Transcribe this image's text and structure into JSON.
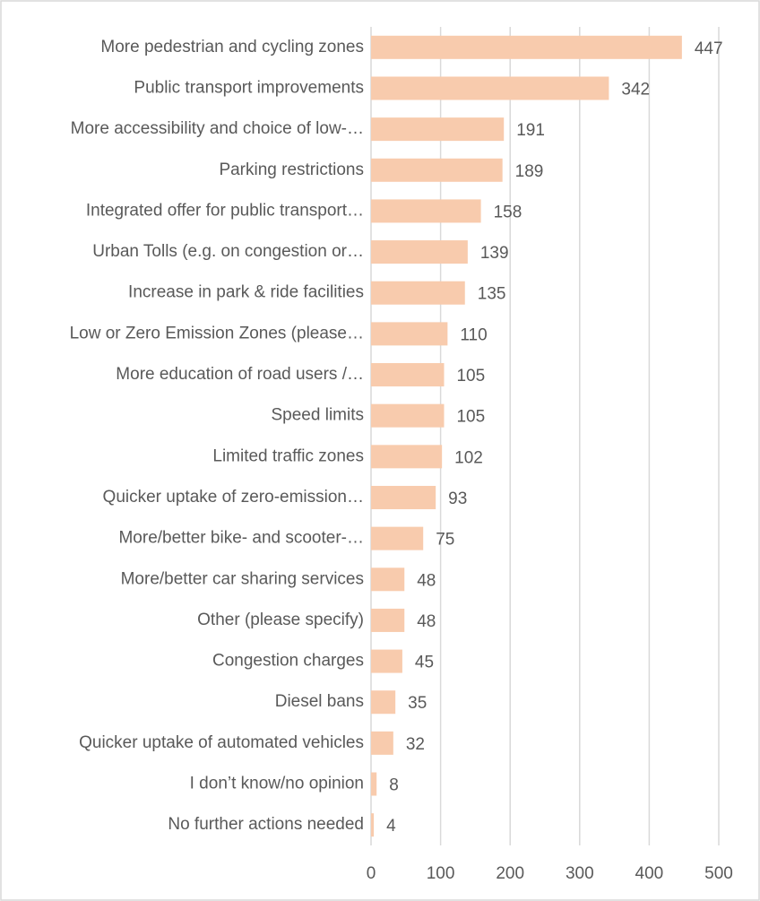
{
  "chart_data": {
    "type": "bar",
    "orientation": "horizontal",
    "categories": [
      "More pedestrian and cycling zones",
      "Public transport improvements",
      "More accessibility and choice of low-…",
      "Parking restrictions",
      "Integrated offer for public transport…",
      "Urban Tolls (e.g. on congestion or…",
      "Increase in park & ride facilities",
      "Low or Zero Emission Zones (please…",
      "More education of road users /…",
      "Speed limits",
      "Limited traffic zones",
      "Quicker uptake of zero-emission…",
      "More/better bike- and scooter-…",
      "More/better car sharing services",
      "Other (please specify)",
      "Congestion charges",
      "Diesel bans",
      "Quicker uptake of automated vehicles",
      "I don’t know/no opinion",
      "No further actions needed"
    ],
    "values": [
      447,
      342,
      191,
      189,
      158,
      139,
      135,
      110,
      105,
      105,
      102,
      93,
      75,
      48,
      48,
      45,
      35,
      32,
      8,
      4
    ],
    "color": "#f8cbad",
    "xlim": [
      0,
      500
    ],
    "xticks": [
      0,
      100,
      200,
      300,
      400,
      500
    ],
    "grid": true
  }
}
